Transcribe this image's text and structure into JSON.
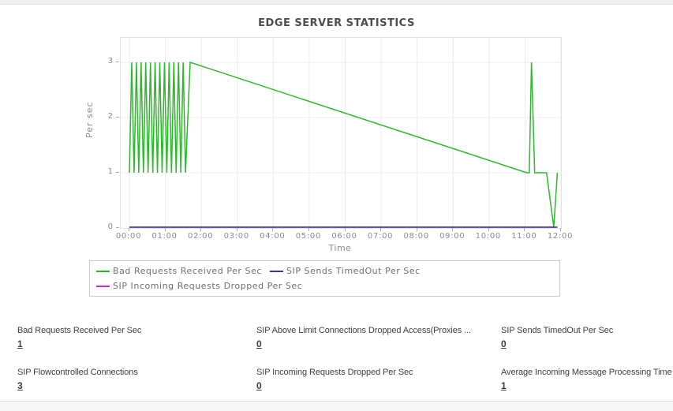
{
  "title": "EDGE SERVER STATISTICS",
  "chart_data": {
    "type": "line",
    "title": "EDGE SERVER STATISTICS",
    "xlabel": "Time",
    "ylabel": "Per sec",
    "x_ticks": [
      "00:00",
      "01:00",
      "02:00",
      "03:00",
      "04:00",
      "05:00",
      "06:00",
      "07:00",
      "08:00",
      "09:00",
      "10:00",
      "11:00",
      "12:00"
    ],
    "y_ticks": [
      0,
      1,
      2,
      3
    ],
    "xlim_hours": [
      0,
      12
    ],
    "ylim": [
      0,
      3.45
    ],
    "grid": true,
    "legend_position": "bottom",
    "series": [
      {
        "name": "Bad Requests Received Per Sec",
        "color": "#2eb82e",
        "points": [
          [
            0,
            1
          ],
          [
            0.065,
            3
          ],
          [
            0.13,
            1
          ],
          [
            0.195,
            3
          ],
          [
            0.26,
            1
          ],
          [
            0.325,
            3
          ],
          [
            0.39,
            1
          ],
          [
            0.455,
            3
          ],
          [
            0.52,
            1
          ],
          [
            0.585,
            3
          ],
          [
            0.65,
            1
          ],
          [
            0.715,
            3
          ],
          [
            0.78,
            1
          ],
          [
            0.845,
            3
          ],
          [
            0.91,
            1
          ],
          [
            0.975,
            3
          ],
          [
            1.04,
            1
          ],
          [
            1.105,
            3
          ],
          [
            1.17,
            1
          ],
          [
            1.235,
            3
          ],
          [
            1.3,
            1
          ],
          [
            1.365,
            3
          ],
          [
            1.43,
            1
          ],
          [
            1.495,
            3
          ],
          [
            1.56,
            1
          ],
          [
            1.69,
            3
          ],
          [
            11.05,
            1
          ],
          [
            11.12,
            1
          ],
          [
            11.18,
            3
          ],
          [
            11.27,
            1
          ],
          [
            11.6,
            1
          ],
          [
            11.8,
            0
          ],
          [
            11.9,
            1
          ]
        ]
      },
      {
        "name": "SIP Incoming Requests Dropped Per Sec",
        "color": "#bf30bf",
        "points": [
          [
            0,
            0
          ],
          [
            11.9,
            0
          ]
        ]
      },
      {
        "name": "SIP Sends TimedOut Per Sec",
        "color": "#38389b",
        "points": [
          [
            0,
            0
          ],
          [
            11.9,
            0
          ]
        ]
      }
    ],
    "legend_order": [
      "Bad Requests Received Per Sec",
      "SIP Sends TimedOut Per Sec",
      "SIP Incoming Requests Dropped Per Sec"
    ]
  },
  "stats": [
    {
      "label": "Bad Requests Received Per Sec",
      "value": "1"
    },
    {
      "label": "SIP Above Limit Connections Dropped Access(Proxies ...",
      "value": "0"
    },
    {
      "label": "SIP Sends TimedOut Per Sec",
      "value": "0"
    },
    {
      "label": "SIP Flowcontrolled Connections",
      "value": "3"
    },
    {
      "label": "SIP Incoming Requests Dropped Per Sec",
      "value": "0"
    },
    {
      "label": "Average Incoming Message Processing Time",
      "value": "1"
    }
  ],
  "colors": {
    "grid": "#ececec",
    "plot_border": "#e2e2e2",
    "tick": "#a9a9a9",
    "axis_text": "#8b8b8b",
    "legend_text": "#6f6f6f",
    "title_text": "#4d4d4d"
  }
}
